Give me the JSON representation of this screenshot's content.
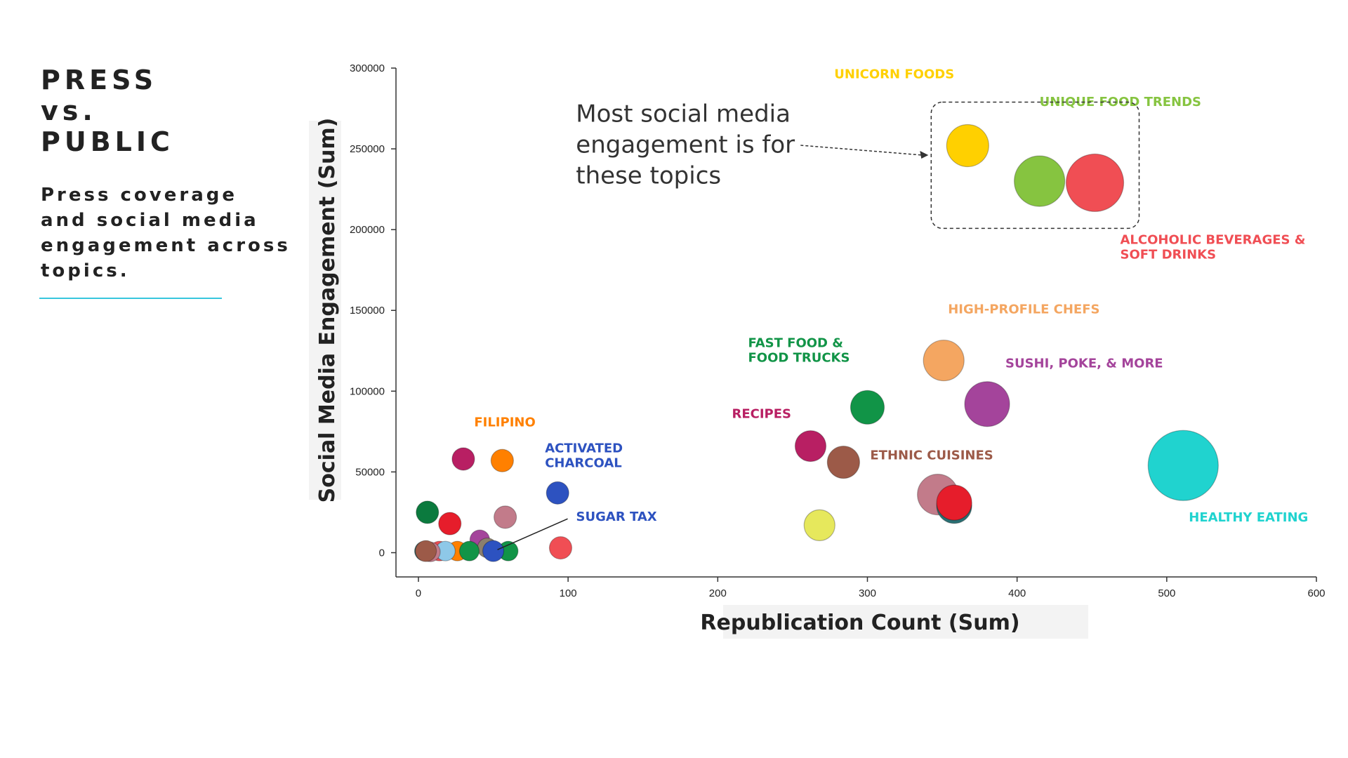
{
  "page": {
    "title_lines": [
      "PRESS",
      "vs.",
      "PUBLIC"
    ],
    "subtitle_lines": [
      "Press coverage",
      "and social media",
      "engagement across",
      "topics."
    ],
    "accent_color": "#38c6dd"
  },
  "chart_data": {
    "type": "scatter",
    "title": "",
    "xlabel": "Republication Count (Sum)",
    "ylabel": "Social Media Engagement (Sum)",
    "xlim": [
      -15,
      600
    ],
    "ylim": [
      -15000,
      300000
    ],
    "xticks": [
      0,
      100,
      200,
      300,
      400,
      500,
      600
    ],
    "yticks": [
      0,
      50000,
      100000,
      150000,
      200000,
      250000,
      300000
    ],
    "grid": false,
    "points": [
      {
        "name": "UNICORN FOODS",
        "x": 367,
        "y": 252000,
        "size": 30,
        "color": "#ffd000",
        "show_label": true
      },
      {
        "name": "UNIQUE FOOD TRENDS",
        "x": 415,
        "y": 230000,
        "size": 36,
        "color": "#86c440",
        "show_label": true
      },
      {
        "name": "ALCOHOLIC BEVERAGES & SOFT DRINKS",
        "x": 452,
        "y": 229000,
        "size": 41,
        "color": "#f04e54",
        "show_label": true
      },
      {
        "name": "HIGH-PROFILE CHEFS",
        "x": 351,
        "y": 119000,
        "size": 29,
        "color": "#f4a661",
        "show_label": true
      },
      {
        "name": "SUSHI, POKE, & MORE",
        "x": 380,
        "y": 92000,
        "size": 32,
        "color": "#a4449b",
        "show_label": true
      },
      {
        "name": "FAST FOOD & FOOD TRUCKS",
        "x": 300,
        "y": 90000,
        "size": 24,
        "color": "#119447",
        "show_label": true
      },
      {
        "name": "RECIPES",
        "x": 262,
        "y": 66000,
        "size": 22,
        "color": "#b81f63",
        "show_label": true
      },
      {
        "name": "ETHNIC CUISINES",
        "x": 284,
        "y": 56000,
        "size": 23,
        "color": "#9c5a48",
        "show_label": true
      },
      {
        "name": "HEALTHY EATING",
        "x": 511,
        "y": 54000,
        "size": 50,
        "color": "#20d3cf",
        "show_label": true
      },
      {
        "name": "",
        "x": 347,
        "y": 36000,
        "size": 29,
        "color": "#c27b8a",
        "show_label": false
      },
      {
        "name": "",
        "x": 358,
        "y": 29000,
        "size": 25,
        "color": "#2a6f73",
        "show_label": false
      },
      {
        "name": "",
        "x": 358,
        "y": 31000,
        "size": 25,
        "color": "#e61d2b",
        "show_label": false
      },
      {
        "name": "",
        "x": 268,
        "y": 17000,
        "size": 22,
        "color": "#e6e85c",
        "show_label": false
      },
      {
        "name": "FILIPINO",
        "x": 56,
        "y": 57000,
        "size": 16,
        "color": "#ff8000",
        "show_label": true
      },
      {
        "name": "",
        "x": 30,
        "y": 58000,
        "size": 16,
        "color": "#b81f63",
        "show_label": false
      },
      {
        "name": "ACTIVATED CHARCOAL",
        "x": 93,
        "y": 37000,
        "size": 16,
        "color": "#2d52c0",
        "show_label": true
      },
      {
        "name": "",
        "x": 6,
        "y": 25000,
        "size": 16,
        "color": "#0b7a3e",
        "show_label": false
      },
      {
        "name": "",
        "x": 58,
        "y": 22000,
        "size": 16,
        "color": "#c27b8a",
        "show_label": false
      },
      {
        "name": "",
        "x": 21,
        "y": 18000,
        "size": 16,
        "color": "#e61d2b",
        "show_label": false
      },
      {
        "name": "",
        "x": 41,
        "y": 8000,
        "size": 14,
        "color": "#a4449b",
        "show_label": false
      },
      {
        "name": "",
        "x": 95,
        "y": 3000,
        "size": 16,
        "color": "#f04e54",
        "show_label": false
      },
      {
        "name": "",
        "x": 60,
        "y": 1000,
        "size": 14,
        "color": "#119447",
        "show_label": false
      },
      {
        "name": "",
        "x": 26,
        "y": 1000,
        "size": 14,
        "color": "#ff8000",
        "show_label": false
      },
      {
        "name": "",
        "x": 14,
        "y": 1000,
        "size": 14,
        "color": "#f04e54",
        "show_label": false
      },
      {
        "name": "",
        "x": 18,
        "y": 1000,
        "size": 14,
        "color": "#8ec8e8",
        "show_label": false
      },
      {
        "name": "",
        "x": 46,
        "y": 3000,
        "size": 14,
        "color": "#8b7f6e",
        "show_label": false
      },
      {
        "name": "",
        "x": 34,
        "y": 1000,
        "size": 14,
        "color": "#119447",
        "show_label": false
      },
      {
        "name": "",
        "x": 4,
        "y": 1000,
        "size": 14,
        "color": "#2a6f73",
        "show_label": false
      },
      {
        "name": "",
        "x": 8,
        "y": 500,
        "size": 14,
        "color": "#c27b8a",
        "show_label": false
      },
      {
        "name": "",
        "x": 5,
        "y": 1000,
        "size": 15,
        "color": "#9c5a48",
        "show_label": false
      },
      {
        "name": "SUGAR TAX",
        "x": 50,
        "y": 1000,
        "size": 15,
        "color": "#2d52c0",
        "show_label": true
      }
    ],
    "annotation": {
      "lines": [
        "Most social media",
        "engagement is for",
        "these topics"
      ]
    }
  }
}
